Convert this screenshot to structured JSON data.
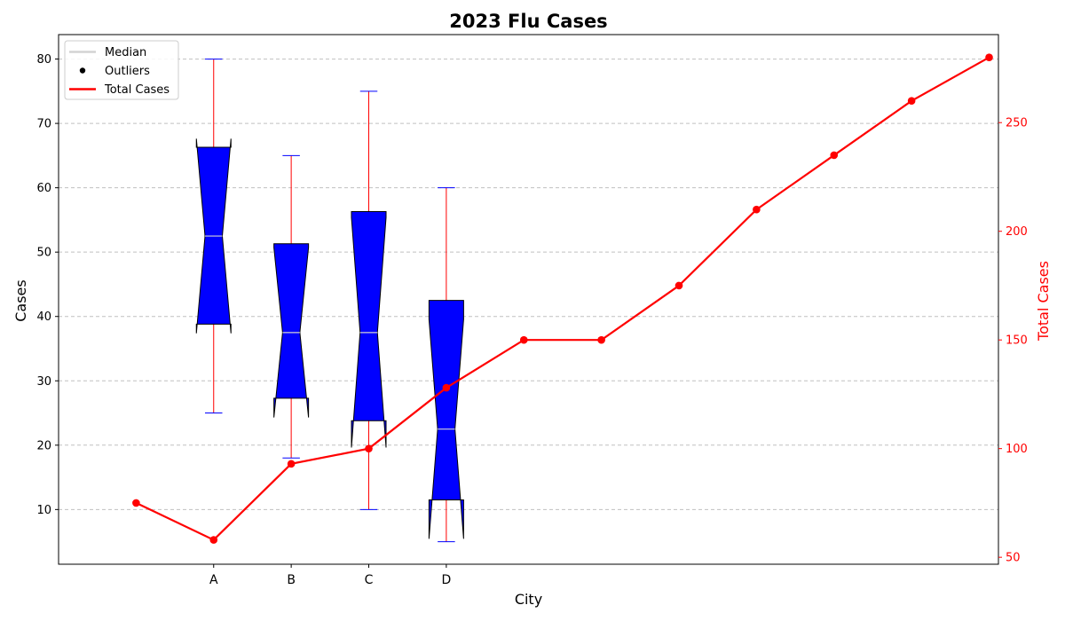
{
  "chart_data": {
    "type": "box",
    "title": "2023 Flu Cases",
    "xlabel": "City",
    "ylabel": "Cases",
    "y2label": "Total Cases",
    "categories": [
      "A",
      "B",
      "C",
      "D"
    ],
    "ylim": [
      1.5,
      83.8
    ],
    "y2lim": [
      46.8,
      290.5
    ],
    "y_ticks": [
      10,
      20,
      30,
      40,
      50,
      60,
      70,
      80
    ],
    "y2_ticks": [
      50,
      100,
      150,
      200,
      250
    ],
    "grid": true,
    "grid_axis": "y",
    "legend_position": "top-left",
    "legend": [
      "Median",
      "Outliers",
      "Total Cases"
    ],
    "boxes": [
      {
        "category": "A",
        "whisker_low": 25,
        "q1": 38.8,
        "median": 52.5,
        "q3": 66.3,
        "whisker_high": 80
      },
      {
        "category": "B",
        "whisker_low": 18,
        "q1": 27.3,
        "median": 37.5,
        "q3": 51.3,
        "whisker_high": 65
      },
      {
        "category": "C",
        "whisker_low": 10,
        "q1": 23.8,
        "median": 37.5,
        "q3": 56.3,
        "whisker_high": 75
      },
      {
        "category": "D",
        "whisker_low": 5,
        "q1": 11.5,
        "median": 22.5,
        "q3": 42.5,
        "whisker_high": 60
      }
    ],
    "total_cases_series": {
      "name": "Total Cases",
      "x": [
        0,
        1,
        2,
        3,
        4,
        5,
        6,
        7,
        8,
        9,
        10,
        11
      ],
      "values": [
        75,
        58,
        93,
        100,
        128,
        150,
        150,
        175,
        210,
        235,
        260,
        280
      ]
    },
    "colors": {
      "box_fill": "#0000ff",
      "box_edge": "#000000",
      "whisker": "#ff0000",
      "cap": "#0000ff",
      "median": "#d3d3d3",
      "line": "#ff0000",
      "grid": "#c0c0c0"
    }
  }
}
